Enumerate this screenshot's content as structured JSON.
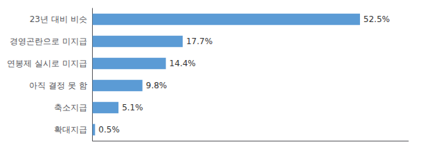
{
  "chart_data": {
    "type": "bar",
    "orientation": "horizontal",
    "categories": [
      "확대지급",
      "축소지급",
      "아직 결정 못 함",
      "연봉제 실시로 미지급",
      "경영곤란으로 미지급",
      "23년 대비 비슷"
    ],
    "values": [
      0.5,
      5.1,
      9.8,
      14.4,
      17.7,
      52.5
    ],
    "value_labels": [
      "0.5%",
      "5.1%",
      "9.8%",
      "14.4%",
      "17.7%",
      "52.5%"
    ],
    "color": "#5B9BD5",
    "xlim": [
      0,
      62
    ],
    "grid": false,
    "data_labels": true,
    "tick_labels": "y"
  }
}
